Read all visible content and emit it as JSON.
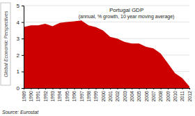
{
  "chart_data": {
    "type": "area",
    "title": "Portugal GDP",
    "subtitle": "(annual, % growth, 10 year moving average)",
    "annotations": [
      "Global Economic Perspectives",
      "Source: Eurostat"
    ],
    "x": [
      1989,
      1990,
      1991,
      1992,
      1993,
      1994,
      1995,
      1996,
      1997,
      1998,
      1999,
      2000,
      2001,
      2002,
      2003,
      2004,
      2005,
      2006,
      2007,
      2008,
      2009,
      2010,
      2011,
      2012
    ],
    "values": [
      3.7,
      3.8,
      3.8,
      3.9,
      3.75,
      3.95,
      4.0,
      4.05,
      4.1,
      3.8,
      3.7,
      3.5,
      3.1,
      3.0,
      2.8,
      2.7,
      2.7,
      2.5,
      2.4,
      2.1,
      1.5,
      0.9,
      0.6,
      0.1
    ],
    "color": "#cc0000",
    "xlim": [
      1989,
      2012
    ],
    "xticks": [
      1989,
      1990,
      1991,
      1992,
      1993,
      1994,
      1995,
      1996,
      1997,
      1998,
      1999,
      2000,
      2001,
      2002,
      2003,
      2004,
      2005,
      2006,
      2007,
      2008,
      2009,
      2010,
      2011,
      2012
    ],
    "ylim": [
      0,
      5
    ],
    "yticks": [
      0,
      1,
      2,
      3,
      4,
      5
    ],
    "grid": true
  }
}
